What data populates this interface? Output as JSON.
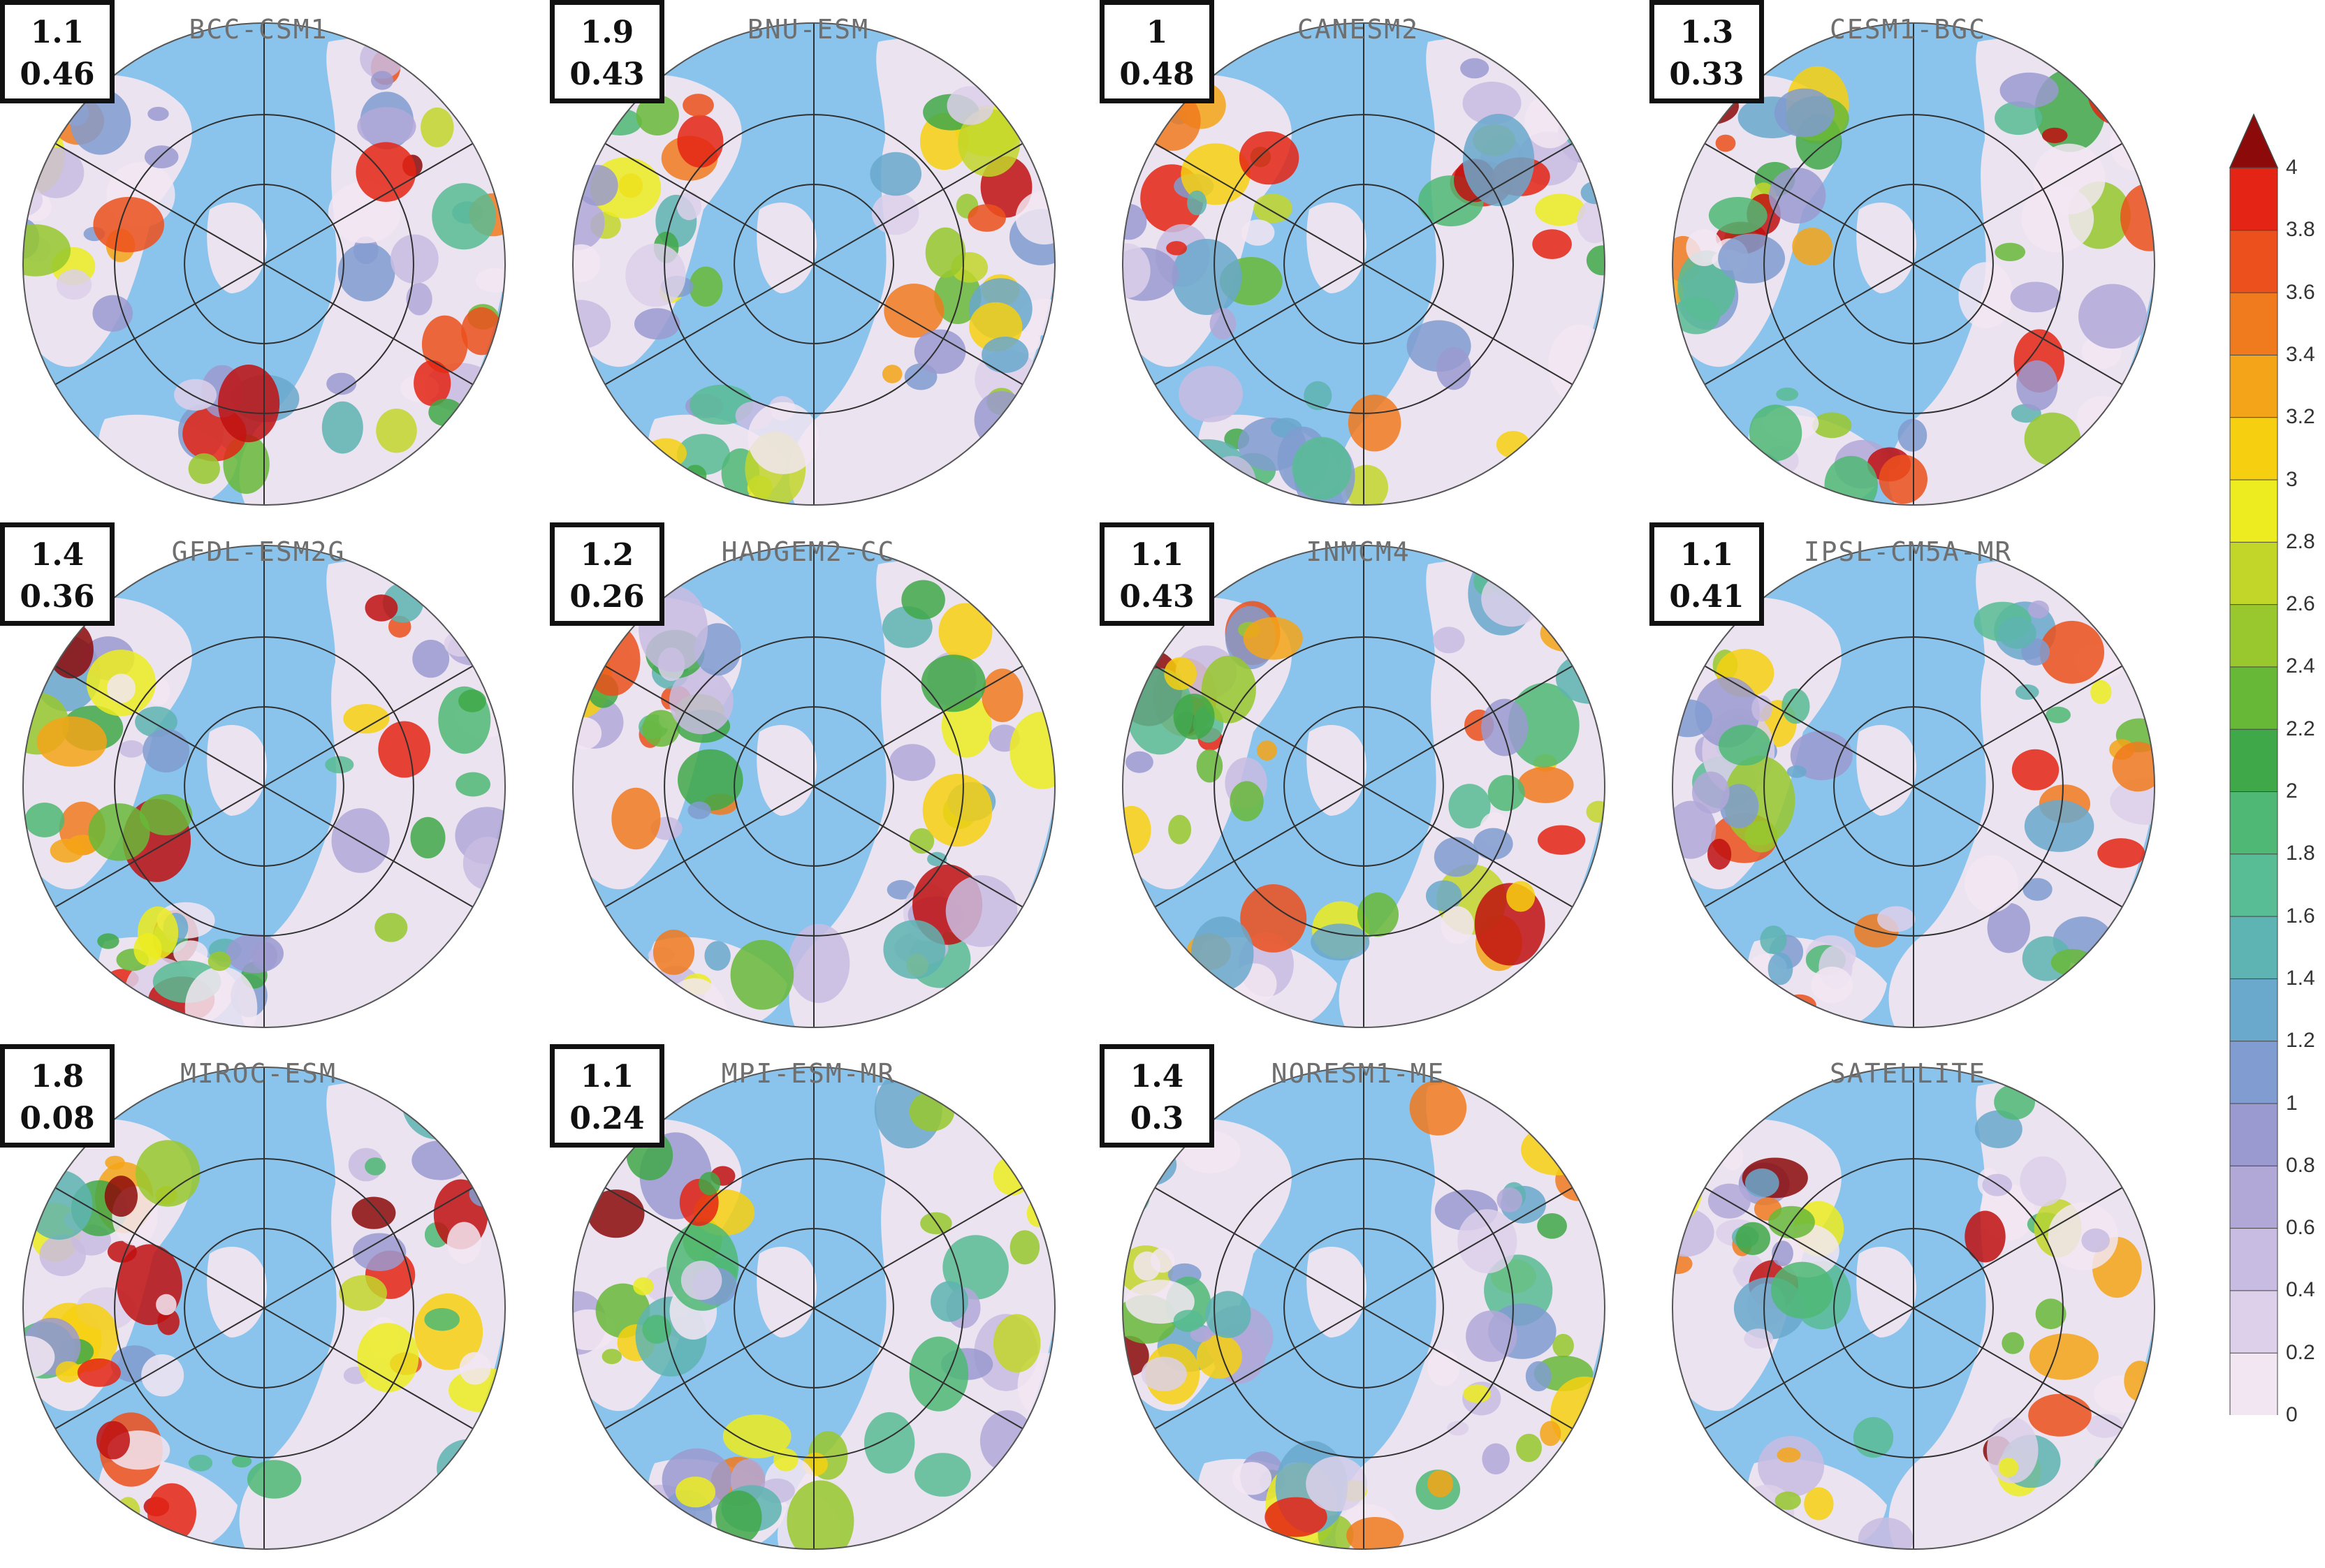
{
  "panels": [
    {
      "title": "BCC-CSM1",
      "stat1": "1.1",
      "stat2": "0.46",
      "show_box": true
    },
    {
      "title": "BNU-ESM",
      "stat1": "1.9",
      "stat2": "0.43",
      "show_box": true
    },
    {
      "title": "CANESM2",
      "stat1": "1",
      "stat2": "0.48",
      "show_box": true
    },
    {
      "title": "CESM1-BGC",
      "stat1": "1.3",
      "stat2": "0.33",
      "show_box": true
    },
    {
      "title": "GFDL-ESM2G",
      "stat1": "1.4",
      "stat2": "0.36",
      "show_box": true
    },
    {
      "title": "HADGEM2-CC",
      "stat1": "1.2",
      "stat2": "0.26",
      "show_box": true
    },
    {
      "title": "INMCM4",
      "stat1": "1.1",
      "stat2": "0.43",
      "show_box": true
    },
    {
      "title": "IPSL-CM5A-MR",
      "stat1": "1.1",
      "stat2": "0.41",
      "show_box": true
    },
    {
      "title": "MIROC-ESM",
      "stat1": "1.8",
      "stat2": "0.08",
      "show_box": true
    },
    {
      "title": "MPI-ESM-MR",
      "stat1": "1.1",
      "stat2": "0.24",
      "show_box": true
    },
    {
      "title": "NORESM1-ME",
      "stat1": "1.4",
      "stat2": "0.3",
      "show_box": true
    },
    {
      "title": "SATELLITE",
      "stat1": "",
      "stat2": "",
      "show_box": false
    }
  ],
  "colorbar": {
    "ticks": [
      "4",
      "3.8",
      "3.6",
      "3.4",
      "3.2",
      "3",
      "2.8",
      "2.6",
      "2.4",
      "2.2",
      "2",
      "1.8",
      "1.6",
      "1.4",
      "1.2",
      "1",
      "0.8",
      "0.6",
      "0.4",
      "0.2",
      "0"
    ],
    "colors": [
      "#f2e6f2",
      "#dcd0ea",
      "#c8bce2",
      "#b2a8d8",
      "#9a9ad0",
      "#809cd0",
      "#6aa8cc",
      "#5eb4b2",
      "#58bc94",
      "#4fb874",
      "#3fa848",
      "#68b838",
      "#98c82e",
      "#c2d62a",
      "#ecec20",
      "#f6d010",
      "#f4a418",
      "#f07a1e",
      "#ec501c",
      "#e42414",
      "#c01010",
      "#8c0a0a"
    ]
  },
  "map_colors": {
    "ocean": "#8ac4ec",
    "land": "#ebe3f0",
    "coast": "#1a1a1a",
    "grid": "#303030"
  }
}
